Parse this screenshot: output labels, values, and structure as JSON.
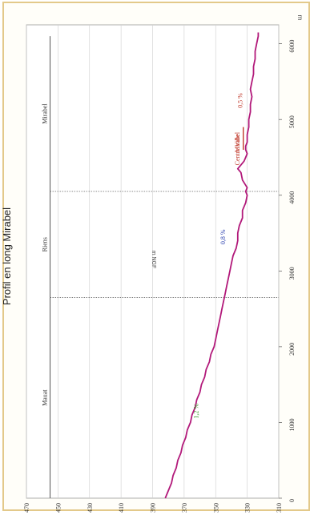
{
  "chart_data": {
    "type": "line",
    "title": "Profil en long Mirabel",
    "ylabel": "m NGF",
    "xunit": "m",
    "xlim": [
      0,
      6250
    ],
    "ylim": [
      310,
      470
    ],
    "xticks": [
      0,
      1000,
      2000,
      3000,
      4000,
      5000,
      6000
    ],
    "yticks": [
      310,
      330,
      350,
      370,
      390,
      410,
      430,
      450,
      470
    ],
    "grid": true,
    "line_color": "#b2197a",
    "series": [
      {
        "x": [
          0,
          100,
          200,
          300,
          400,
          500,
          600,
          700,
          800,
          900,
          1000,
          1100,
          1200,
          1300,
          1400,
          1500,
          1600,
          1700,
          1800,
          1900,
          2000,
          2100,
          2200,
          2300,
          2400,
          2500,
          2600,
          2650,
          2700,
          2800,
          2900,
          3000,
          3100,
          3200,
          3300,
          3400,
          3500,
          3600,
          3700,
          3800,
          3900,
          4000,
          4050,
          4100,
          4200,
          4300,
          4350,
          4400,
          4450,
          4500,
          4550,
          4600,
          4650,
          4700,
          4800,
          4900,
          5000,
          5100,
          5200,
          5300,
          5400,
          5500,
          5600,
          5700,
          5800,
          5900,
          6000,
          6100,
          6150
        ],
        "values": [
          382,
          380,
          378,
          377,
          375,
          374,
          372,
          371,
          369,
          368,
          366,
          365,
          363,
          362,
          360,
          359,
          357,
          356,
          354,
          353,
          351,
          350,
          349,
          348,
          347,
          346,
          345,
          344.5,
          344,
          343,
          342,
          341,
          340,
          339,
          337,
          336,
          336,
          335,
          333,
          333,
          331,
          330,
          331,
          330,
          333,
          334,
          336,
          334,
          332,
          331,
          330,
          331,
          331,
          330,
          330,
          329,
          329,
          328,
          328,
          327,
          328,
          327,
          326,
          326,
          325,
          325,
          324,
          323,
          323
        ]
      }
    ],
    "sections": [
      {
        "name": "Mauat",
        "x_start": 0,
        "x_end": 2650
      },
      {
        "name": "Riens",
        "x_start": 2650,
        "x_end": 4050
      },
      {
        "name": "Mirabel",
        "x_start": 4050,
        "x_end": 6100
      }
    ],
    "section_line_y": 455,
    "annotations": [
      {
        "text": "1,2 %",
        "x": 1150,
        "y": 361,
        "color": "#3a9a2a"
      },
      {
        "text": "0,8 %",
        "x": 3450,
        "y": 344,
        "color": "#2a3fae"
      },
      {
        "text": "Centre Ville",
        "x": 4600,
        "y": 335,
        "color": "#c0392b"
      },
      {
        "text": "Mirabel",
        "x": 4700,
        "y": 335,
        "color": "#c0392b"
      },
      {
        "text": "0,5 %",
        "x": 5250,
        "y": 333,
        "color": "#c0392b"
      }
    ],
    "centre_ville_segment": {
      "x_start": 4600,
      "x_end": 4900,
      "y": 332.5
    }
  }
}
